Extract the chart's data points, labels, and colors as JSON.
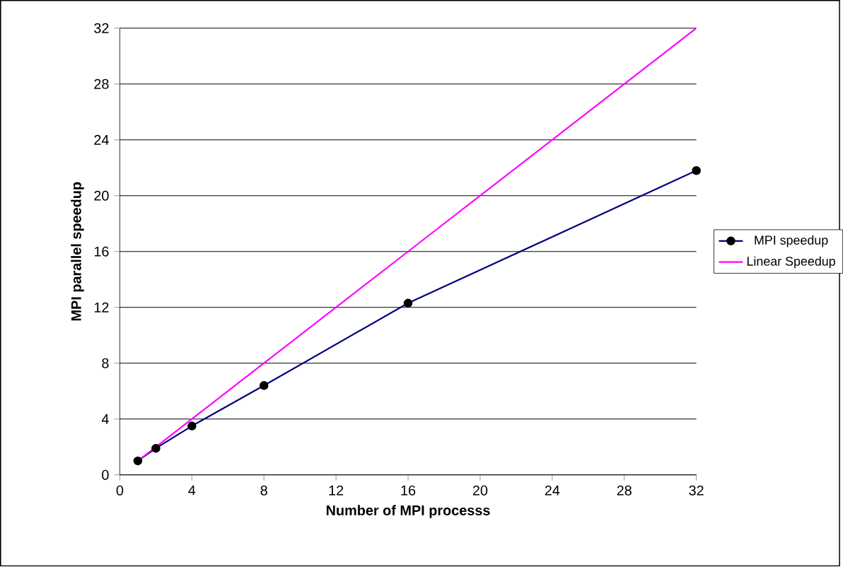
{
  "chart_data": {
    "type": "line",
    "xlabel": "Number of MPI processs",
    "ylabel": "MPI parallel speedup",
    "xlim": [
      0,
      32
    ],
    "xticks": [
      0,
      4,
      8,
      12,
      16,
      20,
      24,
      28,
      32
    ],
    "ylim": [
      0,
      32
    ],
    "yticks": [
      0,
      4,
      8,
      12,
      16,
      20,
      24,
      28,
      32
    ],
    "grid": "y",
    "legend": "right",
    "series": [
      {
        "name": "MPI speedup",
        "color": "#000080",
        "marker": "circle",
        "x": [
          1,
          2,
          4,
          8,
          16,
          32
        ],
        "values": [
          1.0,
          1.9,
          3.5,
          6.4,
          12.3,
          21.8
        ]
      },
      {
        "name": "Linear Speedup",
        "color": "#ff00ff",
        "marker": "none",
        "x": [
          1,
          2,
          4,
          8,
          16,
          32
        ],
        "values": [
          1,
          2,
          4,
          8,
          16,
          32
        ]
      }
    ]
  }
}
